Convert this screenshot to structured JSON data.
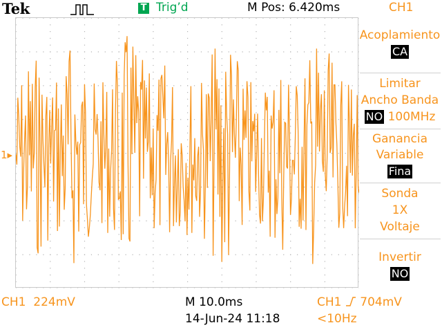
{
  "header": {
    "brand": "Tek",
    "trigger_badge": "T",
    "trigger_status": "Trig’d",
    "m_position": "M Pos: 6.420ms",
    "channel": "CH1"
  },
  "side_menu": {
    "acoplamiento": {
      "label": "Acoplamiento",
      "value": "CA"
    },
    "limitar": {
      "label_line1": "Limitar",
      "label_line2": "Ancho Banda",
      "value": "NO",
      "suffix": "100MHz"
    },
    "ganancia": {
      "label_line1": "Ganancia",
      "label_line2": "Variable",
      "value": "Fina"
    },
    "sonda": {
      "label_line1": "Sonda",
      "label_line2": "1X",
      "label_line3": "Voltaje"
    },
    "invertir": {
      "label": "Invertir",
      "value": "NO"
    }
  },
  "footer": {
    "ch1_scale": "CH1  224mV",
    "timebase": "M 10.0ms",
    "datetime": "14-Jun-24 11:18",
    "trigger_source": "CH1",
    "trigger_level": "704mV",
    "frequency": "<10Hz"
  },
  "scope": {
    "channel_marker": "1",
    "trace_color": "#f7941d",
    "trigger_position": 0.436
  },
  "colors": {
    "trace": "#f7941d",
    "trigged": "#00a651",
    "grid_dots": "#b0b0b0"
  }
}
